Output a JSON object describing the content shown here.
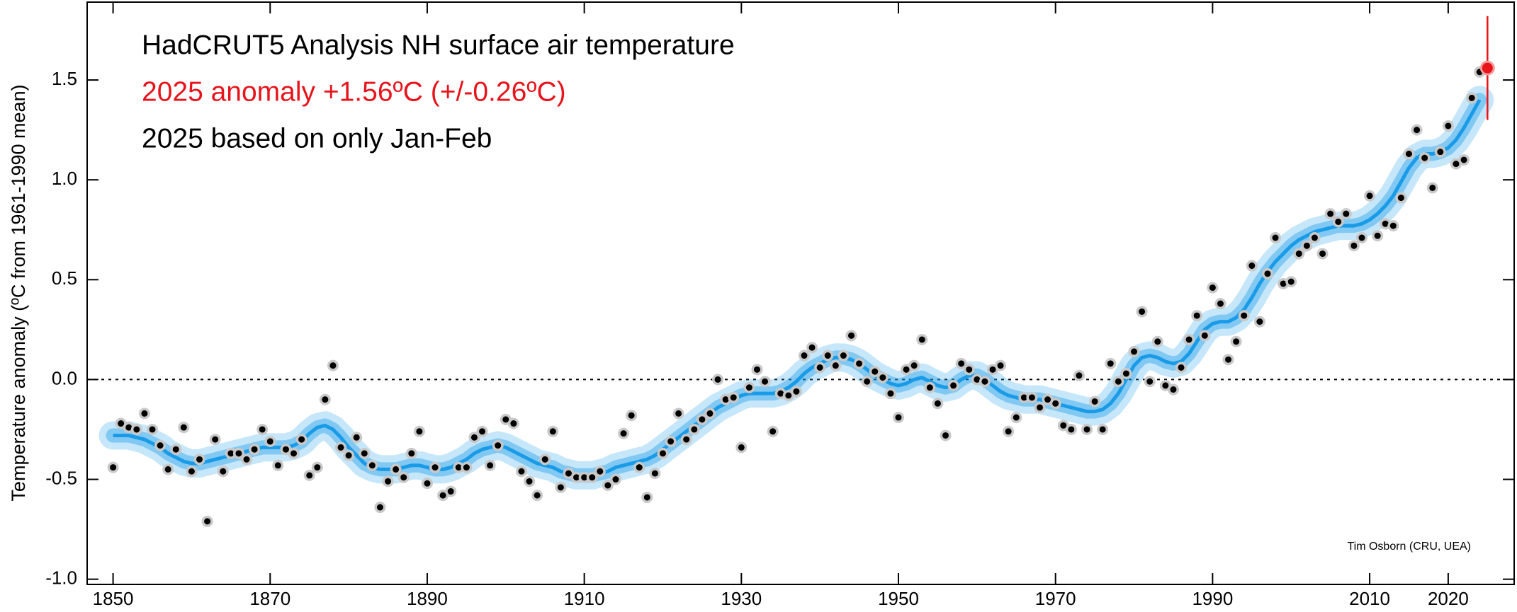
{
  "chart_data": {
    "type": "scatter",
    "title_lines": [
      "HadCRUT5 Analysis NH surface air temperature",
      "2025 anomaly +1.56ºC (+/-0.26ºC)",
      "2025 based on only Jan-Feb"
    ],
    "title_colors": [
      "#000000",
      "#e8131b",
      "#000000"
    ],
    "ylabel": "Temperature anomaly (ºC from 1961-1990 mean)",
    "credit": "Tim Osborn (CRU, UEA)",
    "x": [
      1850,
      1851,
      1852,
      1853,
      1854,
      1855,
      1856,
      1857,
      1858,
      1859,
      1860,
      1861,
      1862,
      1863,
      1864,
      1865,
      1866,
      1867,
      1868,
      1869,
      1870,
      1871,
      1872,
      1873,
      1874,
      1875,
      1876,
      1877,
      1878,
      1879,
      1880,
      1881,
      1882,
      1883,
      1884,
      1885,
      1886,
      1887,
      1888,
      1889,
      1890,
      1891,
      1892,
      1893,
      1894,
      1895,
      1896,
      1897,
      1898,
      1899,
      1900,
      1901,
      1902,
      1903,
      1904,
      1905,
      1906,
      1907,
      1908,
      1909,
      1910,
      1911,
      1912,
      1913,
      1914,
      1915,
      1916,
      1917,
      1918,
      1919,
      1920,
      1921,
      1922,
      1923,
      1924,
      1925,
      1926,
      1927,
      1928,
      1929,
      1930,
      1931,
      1932,
      1933,
      1934,
      1935,
      1936,
      1937,
      1938,
      1939,
      1940,
      1941,
      1942,
      1943,
      1944,
      1945,
      1946,
      1947,
      1948,
      1949,
      1950,
      1951,
      1952,
      1953,
      1954,
      1955,
      1956,
      1957,
      1958,
      1959,
      1960,
      1961,
      1962,
      1963,
      1964,
      1965,
      1966,
      1967,
      1968,
      1969,
      1970,
      1971,
      1972,
      1973,
      1974,
      1975,
      1976,
      1977,
      1978,
      1979,
      1980,
      1981,
      1982,
      1983,
      1984,
      1985,
      1986,
      1987,
      1988,
      1989,
      1990,
      1991,
      1992,
      1993,
      1994,
      1995,
      1996,
      1997,
      1998,
      1999,
      2000,
      2001,
      2002,
      2003,
      2004,
      2005,
      2006,
      2007,
      2008,
      2009,
      2010,
      2011,
      2012,
      2013,
      2014,
      2015,
      2016,
      2017,
      2018,
      2019,
      2020,
      2021,
      2022,
      2023,
      2024,
      2025
    ],
    "values": [
      -0.44,
      -0.22,
      -0.24,
      -0.25,
      -0.17,
      -0.25,
      -0.33,
      -0.45,
      -0.35,
      -0.24,
      -0.46,
      -0.4,
      -0.71,
      -0.3,
      -0.46,
      -0.37,
      -0.37,
      -0.4,
      -0.35,
      -0.25,
      -0.31,
      -0.43,
      -0.35,
      -0.37,
      -0.3,
      -0.48,
      -0.44,
      -0.1,
      0.07,
      -0.34,
      -0.38,
      -0.29,
      -0.37,
      -0.43,
      -0.64,
      -0.51,
      -0.45,
      -0.49,
      -0.37,
      -0.26,
      -0.52,
      -0.44,
      -0.58,
      -0.56,
      -0.44,
      -0.44,
      -0.29,
      -0.26,
      -0.43,
      -0.33,
      -0.2,
      -0.22,
      -0.46,
      -0.51,
      -0.58,
      -0.4,
      -0.26,
      -0.54,
      -0.47,
      -0.49,
      -0.49,
      -0.49,
      -0.46,
      -0.53,
      -0.5,
      -0.27,
      -0.18,
      -0.44,
      -0.59,
      -0.47,
      -0.37,
      -0.31,
      -0.17,
      -0.3,
      -0.25,
      -0.2,
      -0.17,
      0.0,
      -0.1,
      -0.09,
      -0.34,
      -0.04,
      0.05,
      -0.01,
      -0.26,
      -0.07,
      -0.08,
      -0.06,
      0.12,
      0.16,
      0.06,
      0.12,
      0.07,
      0.12,
      0.22,
      0.08,
      -0.01,
      0.04,
      0.01,
      -0.07,
      -0.19,
      0.05,
      0.07,
      0.2,
      -0.04,
      -0.12,
      -0.28,
      -0.03,
      0.08,
      0.05,
      0.0,
      -0.01,
      0.05,
      0.07,
      -0.26,
      -0.19,
      -0.09,
      -0.09,
      -0.14,
      -0.1,
      -0.12,
      -0.23,
      -0.25,
      0.02,
      -0.25,
      -0.11,
      -0.25,
      0.08,
      -0.01,
      0.03,
      0.14,
      0.34,
      -0.01,
      0.19,
      -0.03,
      -0.05,
      0.06,
      0.2,
      0.32,
      0.22,
      0.46,
      0.38,
      0.1,
      0.19,
      0.32,
      0.57,
      0.29,
      0.53,
      0.71,
      0.48,
      0.49,
      0.63,
      0.67,
      0.71,
      0.63,
      0.83,
      0.79,
      0.83,
      0.67,
      0.71,
      0.92,
      0.72,
      0.78,
      0.77,
      0.91,
      1.13,
      1.25,
      1.11,
      0.96,
      1.14,
      1.27,
      1.08,
      1.1,
      1.41,
      1.54,
      1.56
    ],
    "smooth": [
      -0.28,
      -0.28,
      -0.28,
      -0.29,
      -0.3,
      -0.32,
      -0.34,
      -0.37,
      -0.39,
      -0.41,
      -0.42,
      -0.42,
      -0.41,
      -0.4,
      -0.39,
      -0.38,
      -0.37,
      -0.36,
      -0.35,
      -0.34,
      -0.34,
      -0.34,
      -0.34,
      -0.33,
      -0.31,
      -0.27,
      -0.24,
      -0.23,
      -0.25,
      -0.29,
      -0.34,
      -0.38,
      -0.42,
      -0.44,
      -0.45,
      -0.45,
      -0.45,
      -0.44,
      -0.43,
      -0.43,
      -0.44,
      -0.45,
      -0.45,
      -0.44,
      -0.42,
      -0.4,
      -0.37,
      -0.35,
      -0.34,
      -0.33,
      -0.34,
      -0.36,
      -0.38,
      -0.4,
      -0.42,
      -0.43,
      -0.44,
      -0.46,
      -0.47,
      -0.48,
      -0.48,
      -0.48,
      -0.47,
      -0.46,
      -0.44,
      -0.43,
      -0.42,
      -0.41,
      -0.4,
      -0.38,
      -0.35,
      -0.32,
      -0.29,
      -0.26,
      -0.23,
      -0.2,
      -0.17,
      -0.14,
      -0.12,
      -0.1,
      -0.08,
      -0.07,
      -0.07,
      -0.07,
      -0.07,
      -0.06,
      -0.04,
      -0.01,
      0.03,
      0.06,
      0.08,
      0.1,
      0.11,
      0.11,
      0.1,
      0.08,
      0.05,
      0.02,
      0.0,
      -0.02,
      -0.03,
      -0.02,
      0.0,
      0.01,
      -0.01,
      -0.03,
      -0.04,
      -0.03,
      0.0,
      0.02,
      0.02,
      0.0,
      -0.03,
      -0.06,
      -0.08,
      -0.09,
      -0.1,
      -0.1,
      -0.1,
      -0.11,
      -0.12,
      -0.13,
      -0.14,
      -0.15,
      -0.16,
      -0.16,
      -0.15,
      -0.12,
      -0.07,
      0.0,
      0.07,
      0.11,
      0.12,
      0.11,
      0.09,
      0.08,
      0.09,
      0.13,
      0.19,
      0.25,
      0.28,
      0.29,
      0.29,
      0.31,
      0.35,
      0.41,
      0.48,
      0.54,
      0.59,
      0.63,
      0.67,
      0.7,
      0.72,
      0.74,
      0.75,
      0.76,
      0.77,
      0.77,
      0.77,
      0.78,
      0.8,
      0.83,
      0.87,
      0.92,
      0.99,
      1.06,
      1.11,
      1.13,
      1.13,
      1.14,
      1.16,
      1.2,
      1.26,
      1.33,
      1.4,
      null
    ],
    "last_error": 0.26,
    "color": "#000000",
    "smooth_color": "#1a9be8",
    "highlight_color": "#e8131b",
    "zero_line": true,
    "xlim": [
      1846.7,
      2028.4
    ],
    "xticks": [
      1850,
      1870,
      1890,
      1910,
      1930,
      1950,
      1970,
      1990,
      2010,
      2020
    ],
    "ylim": [
      -1.026,
      1.89
    ],
    "yticks": [
      {
        "value": -1,
        "label": "-1.0"
      },
      -0.5,
      {
        "value": 0,
        "label": "0.0"
      },
      0.5,
      {
        "value": 1,
        "label": "1.0"
      },
      1.5
    ]
  }
}
